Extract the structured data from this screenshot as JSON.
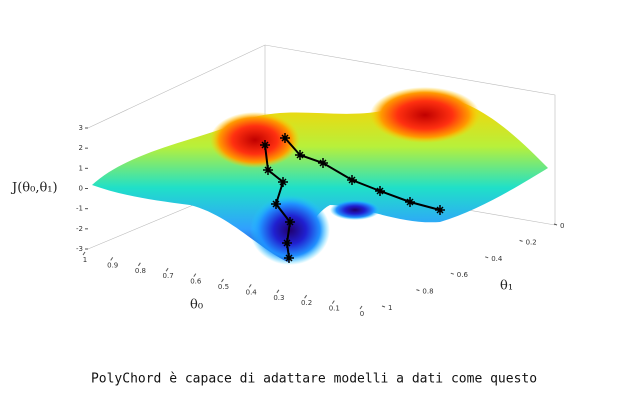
{
  "chart_data": {
    "type": "surface3d",
    "zlabel": "J(θ₀,θ₁)",
    "xlabel": "θ₀",
    "ylabel": "θ₁",
    "xlim": [
      0,
      1
    ],
    "xticks": [
      1,
      0.9,
      0.8,
      0.7,
      0.6,
      0.5,
      0.4,
      0.3,
      0.2,
      0.1,
      0
    ],
    "ylim": [
      0,
      1
    ],
    "yticks": [
      0,
      0.2,
      0.4,
      0.6,
      0.8,
      1
    ],
    "zlim": [
      -3,
      3
    ],
    "zticks": [
      3,
      2,
      1,
      0,
      -1,
      -2,
      -3
    ],
    "caption": "PolyChord è capace di adattare modelli a dati come questo"
  }
}
